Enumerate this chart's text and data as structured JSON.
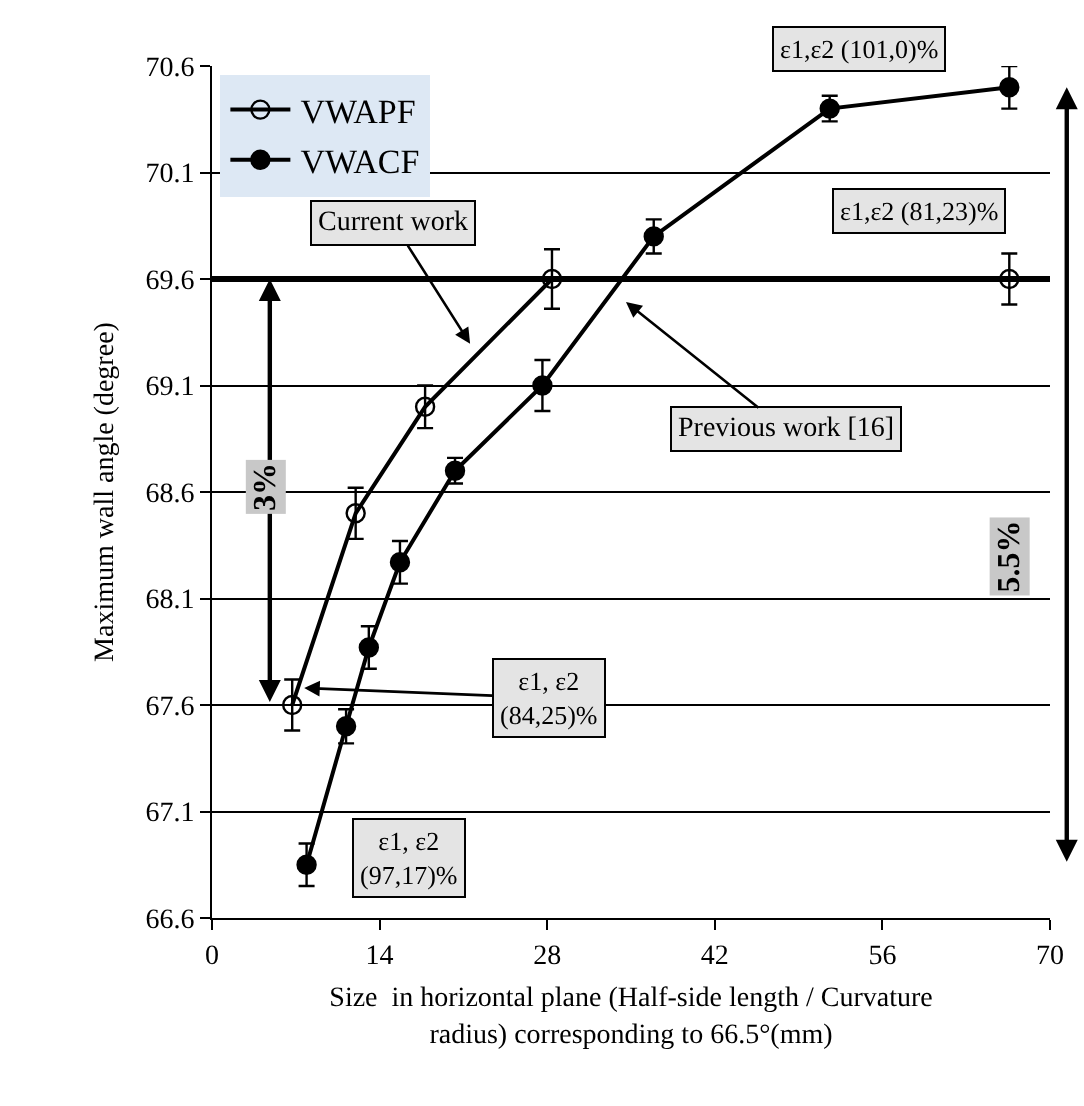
{
  "chart_data": {
    "type": "line",
    "xlabel": "Size  in horizontal plane (Half-side length / Curvature radius) corresponding to 66.5°(mm)",
    "ylabel": "Maximum wall angle (degree)",
    "series": [
      {
        "name": "VWAPF",
        "color": "#000000",
        "marker": "circle-open",
        "x": [
          6.7,
          12,
          17.8,
          28.4,
          66.6
        ],
        "values": [
          67.6,
          68.5,
          69.0,
          69.6,
          69.6
        ],
        "errors": [
          0.12,
          0.12,
          0.1,
          0.14,
          0.12
        ]
      },
      {
        "name": "VWACF",
        "color": "#000000",
        "marker": "circle",
        "x": [
          7.9,
          11.2,
          13.1,
          15.7,
          20.3,
          27.6,
          36.9,
          51.6,
          66.6
        ],
        "values": [
          66.85,
          67.5,
          67.87,
          68.27,
          68.7,
          69.1,
          69.8,
          70.4,
          70.5
        ],
        "errors": [
          0.1,
          0.08,
          0.1,
          0.1,
          0.06,
          0.12,
          0.08,
          0.06,
          0.1
        ]
      }
    ],
    "xlim": [
      0,
      70
    ],
    "xticks": [
      0,
      14,
      28,
      42,
      56,
      70
    ],
    "ylim": [
      66.6,
      70.6
    ],
    "yticks": [
      66.6,
      67.1,
      67.6,
      68.1,
      68.6,
      69.1,
      69.6,
      70.1,
      70.6
    ],
    "grid": "y",
    "legend": "top left",
    "line_style": "solid",
    "ref_lines": [
      {
        "axis": "y",
        "value": 69.6,
        "label": null
      }
    ],
    "annotations": [
      "Current work",
      "Previous work [16]",
      {
        "text": "ε1,ε2 (101,0)%",
        "x": 66.6,
        "y": 70.5
      },
      {
        "text": "ε1,ε2 (81,23)%",
        "x": 66.6,
        "y": 69.6
      },
      {
        "text": "ε1, ε2\n(84,25)%",
        "x": 7.7,
        "y": 67.68
      },
      {
        "text": "ε1, ε2\n(97,17)%",
        "x": 7.9,
        "y": 66.85
      },
      "3%",
      "5.5%"
    ]
  }
}
